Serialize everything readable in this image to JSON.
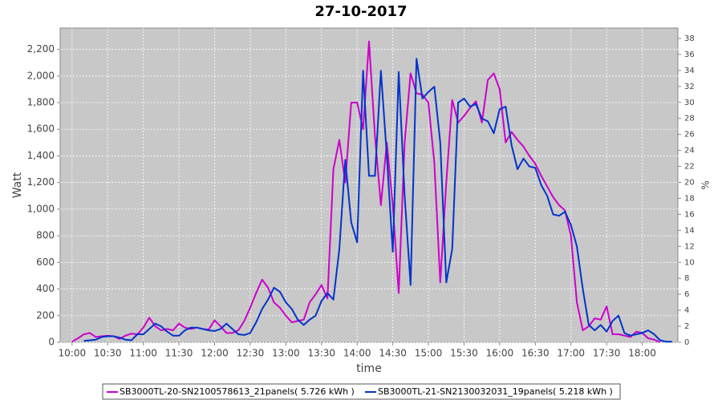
{
  "chart_data": {
    "type": "line",
    "title": "27-10-2017",
    "x_label": "time",
    "y_label": "Watt",
    "y2_label": "%",
    "x": [
      "10:00",
      "10:05",
      "10:10",
      "10:15",
      "10:20",
      "10:25",
      "10:30",
      "10:35",
      "10:40",
      "10:45",
      "10:50",
      "10:55",
      "11:00",
      "11:05",
      "11:10",
      "11:15",
      "11:20",
      "11:25",
      "11:30",
      "11:35",
      "11:40",
      "11:45",
      "11:50",
      "11:55",
      "12:00",
      "12:05",
      "12:10",
      "12:15",
      "12:20",
      "12:25",
      "12:30",
      "12:35",
      "12:40",
      "12:45",
      "12:50",
      "12:55",
      "13:00",
      "13:05",
      "13:10",
      "13:15",
      "13:20",
      "13:25",
      "13:30",
      "13:35",
      "13:40",
      "13:45",
      "13:50",
      "13:55",
      "14:00",
      "14:05",
      "14:10",
      "14:15",
      "14:20",
      "14:25",
      "14:30",
      "14:35",
      "14:40",
      "14:45",
      "14:50",
      "14:55",
      "15:00",
      "15:05",
      "15:10",
      "15:15",
      "15:20",
      "15:25",
      "15:30",
      "15:35",
      "15:40",
      "15:45",
      "15:50",
      "15:55",
      "16:00",
      "16:05",
      "16:10",
      "16:15",
      "16:20",
      "16:25",
      "16:30",
      "16:35",
      "16:40",
      "16:45",
      "16:50",
      "16:55",
      "17:00",
      "17:05",
      "17:10",
      "17:15",
      "17:20",
      "17:25",
      "17:30",
      "17:35",
      "17:40",
      "17:45",
      "17:50",
      "17:55",
      "18:00",
      "18:05",
      "18:10",
      "18:15",
      "18:20",
      "18:25"
    ],
    "series": [
      {
        "name": "SB3000TL-20-SN2100578613_21panels( 5.726 kWh )",
        "color": "#cc00cc",
        "values": [
          5,
          30,
          60,
          70,
          40,
          45,
          50,
          45,
          25,
          50,
          65,
          60,
          110,
          185,
          120,
          90,
          100,
          90,
          140,
          110,
          100,
          110,
          100,
          95,
          165,
          120,
          70,
          70,
          90,
          160,
          260,
          370,
          470,
          410,
          300,
          260,
          200,
          150,
          160,
          170,
          300,
          360,
          430,
          330,
          1300,
          1520,
          1200,
          1800,
          1800,
          1600,
          2260,
          1550,
          1030,
          1500,
          1030,
          370,
          1500,
          2020,
          1870,
          1860,
          1800,
          1350,
          450,
          1200,
          1820,
          1650,
          1700,
          1760,
          1810,
          1650,
          1970,
          2020,
          1900,
          1500,
          1580,
          1520,
          1470,
          1400,
          1340,
          1250,
          1170,
          1090,
          1030,
          990,
          800,
          300,
          90,
          120,
          180,
          170,
          270,
          60,
          60,
          50,
          40,
          80,
          70,
          30,
          20,
          0,
          null,
          null
        ]
      },
      {
        "name": "SB3000TL-21-SN2130032031_19panels( 5.218 kWh )",
        "color": "#0033cc",
        "values": [
          null,
          null,
          10,
          15,
          20,
          40,
          45,
          45,
          35,
          20,
          15,
          60,
          60,
          100,
          140,
          120,
          80,
          50,
          50,
          90,
          110,
          110,
          100,
          90,
          85,
          100,
          140,
          100,
          60,
          55,
          70,
          150,
          250,
          320,
          410,
          380,
          300,
          250,
          170,
          130,
          170,
          200,
          310,
          370,
          320,
          700,
          1370,
          900,
          750,
          2040,
          1250,
          1250,
          2040,
          1400,
          680,
          2030,
          1100,
          430,
          2130,
          1830,
          1880,
          1920,
          1500,
          450,
          700,
          1800,
          1830,
          1770,
          1790,
          1680,
          1660,
          1570,
          1750,
          1770,
          1480,
          1300,
          1380,
          1320,
          1310,
          1180,
          1100,
          960,
          950,
          980,
          880,
          720,
          400,
          130,
          90,
          130,
          80,
          160,
          200,
          70,
          50,
          60,
          70,
          90,
          60,
          15,
          5,
          5
        ]
      }
    ],
    "xlim": [
      "09:50",
      "18:30"
    ],
    "xticks": [
      "10:00",
      "10:30",
      "11:00",
      "11:30",
      "12:00",
      "12:30",
      "13:00",
      "13:30",
      "14:00",
      "14:30",
      "15:00",
      "15:30",
      "16:00",
      "16:30",
      "17:00",
      "17:30",
      "18:00"
    ],
    "ylim": [
      0,
      2360
    ],
    "yticks": [
      0,
      200,
      400,
      600,
      800,
      {
        "value": 1000,
        "label": "1,000"
      },
      {
        "value": 1200,
        "label": "1,200"
      },
      {
        "value": 1400,
        "label": "1,400"
      },
      {
        "value": 1600,
        "label": "1,600"
      },
      {
        "value": 1800,
        "label": "1,800"
      },
      {
        "value": 2000,
        "label": "2,000"
      },
      {
        "value": 2200,
        "label": "2,200"
      }
    ],
    "y2lim": [
      0,
      39.3
    ],
    "y2ticks": [
      0,
      2,
      4,
      6,
      8,
      10,
      12,
      14,
      16,
      18,
      20,
      22,
      24,
      26,
      28,
      30,
      32,
      34,
      36,
      38
    ],
    "grid": true
  }
}
